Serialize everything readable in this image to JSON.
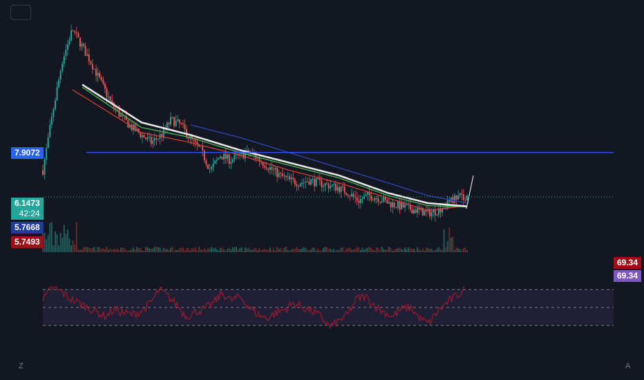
{
  "colors": {
    "background": "#131722",
    "up": "#26a69a",
    "down": "#ef5350",
    "ma_fast": "#e0403a",
    "ma_mid": "#4caf50",
    "ma_slow": "#e6e6e6",
    "ma_long": "#2a3f9e",
    "hline": "#2962ff",
    "rsi_line": "#a0182c",
    "rsi_band": "#2a2846"
  },
  "price_axis": {
    "labels": [
      {
        "value": "7.9072",
        "color": "#2962ff"
      },
      {
        "value": "6.1473",
        "color": "#26a69a",
        "countdown": "42:24"
      },
      {
        "value": "5.7668",
        "color": "#1f3c99"
      },
      {
        "value": "5.7493",
        "color": "#9c1117"
      }
    ]
  },
  "rsi": {
    "labels": [
      {
        "value": "69.34",
        "color": "#9c1117"
      },
      {
        "value": "69.34",
        "color": "#7e57c2"
      }
    ],
    "band": [
      30,
      70
    ]
  },
  "corners": {
    "left": "Z",
    "right": "A"
  },
  "chart_data": {
    "type": "line",
    "title": "",
    "xlabel": "",
    "ylabel": "",
    "price_series": {
      "name": "",
      "points": [
        [
          0,
          7.2
        ],
        [
          2,
          9.5
        ],
        [
          4,
          11.6
        ],
        [
          6,
          12.8
        ],
        [
          8,
          12.1
        ],
        [
          10,
          11.4
        ],
        [
          12,
          10.6
        ],
        [
          14,
          9.8
        ],
        [
          16,
          9.3
        ],
        [
          18,
          8.9
        ],
        [
          20,
          8.6
        ],
        [
          22,
          8.3
        ],
        [
          24,
          8.6
        ],
        [
          26,
          9.2
        ],
        [
          28,
          9.0
        ],
        [
          30,
          8.4
        ],
        [
          32,
          8.0
        ],
        [
          34,
          7.2
        ],
        [
          36,
          7.8
        ],
        [
          38,
          7.6
        ],
        [
          40,
          7.8
        ],
        [
          42,
          7.9
        ],
        [
          44,
          7.6
        ],
        [
          46,
          7.3
        ],
        [
          48,
          7.0
        ],
        [
          50,
          6.8
        ],
        [
          52,
          6.7
        ],
        [
          54,
          6.8
        ],
        [
          56,
          6.7
        ],
        [
          58,
          6.6
        ],
        [
          60,
          6.5
        ],
        [
          62,
          6.3
        ],
        [
          64,
          6.0
        ],
        [
          66,
          6.2
        ],
        [
          68,
          6.1
        ],
        [
          70,
          5.9
        ],
        [
          72,
          5.8
        ],
        [
          74,
          5.7
        ],
        [
          76,
          5.6
        ],
        [
          78,
          5.5
        ],
        [
          80,
          5.6
        ],
        [
          82,
          5.9
        ],
        [
          84,
          6.15
        ],
        [
          86,
          6.1473
        ]
      ]
    },
    "moving_averages": [
      {
        "name": "",
        "points": [
          [
            6,
            10.4
          ],
          [
            20,
            8.7
          ],
          [
            30,
            8.3
          ],
          [
            40,
            7.8
          ],
          [
            50,
            7.2
          ],
          [
            60,
            6.7
          ],
          [
            70,
            6.1
          ],
          [
            78,
            5.6
          ],
          [
            86,
            5.8
          ]
        ]
      },
      {
        "name": "",
        "points": [
          [
            8,
            10.5
          ],
          [
            20,
            8.9
          ],
          [
            30,
            8.5
          ],
          [
            40,
            7.9
          ],
          [
            50,
            7.4
          ],
          [
            60,
            6.9
          ],
          [
            70,
            6.2
          ],
          [
            78,
            5.8
          ],
          [
            86,
            5.75
          ]
        ]
      },
      {
        "name": "",
        "points": [
          [
            8,
            10.6
          ],
          [
            20,
            9.1
          ],
          [
            30,
            8.6
          ],
          [
            40,
            8.0
          ],
          [
            50,
            7.5
          ],
          [
            60,
            7.0
          ],
          [
            70,
            6.3
          ],
          [
            78,
            5.9
          ],
          [
            86,
            5.77
          ]
        ]
      },
      {
        "name": "",
        "points": [
          [
            30,
            9.0
          ],
          [
            40,
            8.5
          ],
          [
            50,
            7.9
          ],
          [
            60,
            7.3
          ],
          [
            70,
            6.7
          ],
          [
            78,
            6.2
          ],
          [
            86,
            5.9
          ]
        ]
      }
    ],
    "horizontal_line": 7.9072,
    "current_price": 6.1473,
    "rsi_series": {
      "name": "",
      "values": [
        58,
        72,
        68,
        60,
        55,
        50,
        45,
        40,
        48,
        44,
        42,
        46,
        55,
        70,
        62,
        52,
        40,
        45,
        48,
        55,
        66,
        58,
        62,
        50,
        42,
        38,
        44,
        48,
        55,
        50,
        46,
        40,
        28,
        35,
        42,
        60,
        62,
        52,
        45,
        40,
        48,
        50,
        38,
        32,
        45,
        55,
        62,
        69.34
      ]
    },
    "rsi_ylim": [
      0,
      100
    ]
  }
}
